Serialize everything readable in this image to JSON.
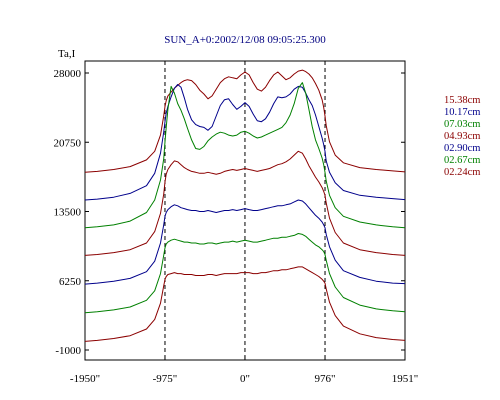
{
  "chart_data": {
    "type": "line",
    "title": "SUN_A+0:2002/12/08 09:05:25.300",
    "ylabel": "Ta,I",
    "xlabel": "",
    "xlim": [
      -1950,
      1951
    ],
    "ylim": [
      -1000,
      30000
    ],
    "x_ticks": [
      {
        "value": -1950,
        "label": "-1950\""
      },
      {
        "value": -975,
        "label": "-975\""
      },
      {
        "value": 0,
        "label": "0\""
      },
      {
        "value": 976,
        "label": "976\""
      },
      {
        "value": 1951,
        "label": "1951\""
      }
    ],
    "y_ticks": [
      {
        "value": -1000,
        "label": "-1000"
      },
      {
        "value": 6250,
        "label": "6250"
      },
      {
        "value": 13500,
        "label": "13500"
      },
      {
        "value": 20750,
        "label": "20750"
      },
      {
        "value": 28000,
        "label": "28000"
      }
    ],
    "vlines": [
      -975,
      0,
      976
    ],
    "legend_position": "right",
    "x": [
      -1950,
      -1800,
      -1600,
      -1400,
      -1200,
      -1100,
      -1030,
      -990,
      -975,
      -960,
      -940,
      -900,
      -860,
      -820,
      -780,
      -740,
      -700,
      -650,
      -600,
      -550,
      -500,
      -450,
      -400,
      -350,
      -300,
      -250,
      -200,
      -150,
      -100,
      -50,
      0,
      50,
      100,
      150,
      200,
      250,
      300,
      350,
      400,
      450,
      500,
      550,
      600,
      650,
      700,
      740,
      780,
      820,
      860,
      900,
      940,
      960,
      976,
      990,
      1030,
      1100,
      1200,
      1400,
      1600,
      1800,
      1951
    ],
    "series": [
      {
        "name": "15.38cm",
        "color": "#8b0000",
        "values": [
          17600,
          17700,
          17900,
          18200,
          18900,
          19800,
          21500,
          23500,
          24500,
          25100,
          25600,
          26000,
          26400,
          26700,
          27000,
          27200,
          27300,
          27200,
          26800,
          26200,
          25800,
          25300,
          25600,
          26300,
          27000,
          27400,
          27600,
          27500,
          27400,
          27800,
          28100,
          27800,
          27000,
          26300,
          26100,
          26500,
          27200,
          27800,
          28100,
          27700,
          27300,
          27500,
          27900,
          28200,
          28300,
          28150,
          27900,
          27500,
          26900,
          26200,
          25200,
          24400,
          23500,
          22500,
          20800,
          19400,
          18600,
          18100,
          17900,
          17750,
          17650
        ]
      },
      {
        "name": "10.17cm",
        "color": "#00008b",
        "values": [
          14700,
          14800,
          15000,
          15400,
          16200,
          17500,
          19600,
          21800,
          22900,
          23800,
          24500,
          25500,
          26400,
          26800,
          26500,
          25400,
          24200,
          23100,
          22600,
          22400,
          22300,
          22000,
          22400,
          23500,
          24600,
          25200,
          25300,
          24700,
          24200,
          24500,
          24900,
          24500,
          23700,
          23000,
          22900,
          23200,
          23900,
          24800,
          25500,
          25400,
          25500,
          25800,
          26300,
          26600,
          26500,
          25900,
          25200,
          24600,
          23600,
          22400,
          21200,
          20500,
          19800,
          18800,
          17600,
          16500,
          15700,
          15200,
          15000,
          14850,
          14750
        ]
      },
      {
        "name": "07.03cm",
        "color": "#008000",
        "values": [
          11800,
          11900,
          12100,
          12500,
          13400,
          14700,
          16800,
          19000,
          20800,
          22300,
          24200,
          26600,
          25900,
          24800,
          24100,
          23200,
          22200,
          21000,
          20100,
          20000,
          20300,
          20900,
          21300,
          21600,
          21800,
          21700,
          21500,
          21400,
          21500,
          21800,
          21900,
          21700,
          21400,
          21200,
          21300,
          21500,
          21700,
          21900,
          22100,
          22300,
          22800,
          23600,
          24800,
          26400,
          27000,
          25900,
          24200,
          22400,
          21000,
          20100,
          19100,
          18400,
          17600,
          16700,
          15200,
          13900,
          13000,
          12400,
          12100,
          11900,
          11800
        ]
      },
      {
        "name": "04.93cm",
        "color": "#8b0000",
        "values": [
          8900,
          9000,
          9200,
          9500,
          10200,
          11400,
          13300,
          15300,
          16600,
          17400,
          17900,
          18400,
          18800,
          18700,
          18400,
          18100,
          17900,
          17700,
          17600,
          17500,
          17500,
          17600,
          17500,
          17400,
          17500,
          17700,
          17800,
          17900,
          17800,
          17900,
          18000,
          17900,
          17800,
          17700,
          17800,
          17900,
          18000,
          18200,
          18400,
          18500,
          18700,
          19000,
          19400,
          19800,
          19600,
          19000,
          18300,
          17700,
          17100,
          16600,
          16000,
          15600,
          15200,
          14400,
          12800,
          11300,
          10200,
          9500,
          9200,
          9000,
          8900
        ]
      },
      {
        "name": "02.90cm",
        "color": "#00008b",
        "values": [
          5900,
          6000,
          6200,
          6500,
          7200,
          8300,
          10200,
          12100,
          13000,
          13400,
          13700,
          14000,
          14200,
          14100,
          13900,
          13800,
          13700,
          13600,
          13600,
          13500,
          13500,
          13600,
          13500,
          13400,
          13500,
          13600,
          13600,
          13700,
          13600,
          13700,
          13800,
          13700,
          13600,
          13600,
          13700,
          13800,
          13900,
          14000,
          14100,
          14100,
          14200,
          14300,
          14500,
          14700,
          14600,
          14300,
          13900,
          13500,
          13100,
          12800,
          12400,
          12100,
          11800,
          11100,
          9800,
          8400,
          7300,
          6600,
          6200,
          6000,
          5950
        ]
      },
      {
        "name": "02.67cm",
        "color": "#008000",
        "values": [
          2900,
          3000,
          3200,
          3500,
          4200,
          5200,
          7000,
          8900,
          9700,
          10100,
          10300,
          10500,
          10600,
          10500,
          10400,
          10300,
          10300,
          10200,
          10200,
          10100,
          10100,
          10200,
          10200,
          10100,
          10200,
          10300,
          10300,
          10400,
          10300,
          10400,
          10500,
          10400,
          10300,
          10300,
          10400,
          10500,
          10600,
          10700,
          10700,
          10800,
          10800,
          10900,
          11000,
          11200,
          11100,
          10900,
          10600,
          10300,
          10000,
          9800,
          9500,
          9300,
          9000,
          8400,
          7000,
          5600,
          4500,
          3700,
          3300,
          3100,
          3000
        ]
      },
      {
        "name": "02.24cm",
        "color": "#8b0000",
        "values": [
          -100,
          0,
          200,
          500,
          1200,
          2200,
          3900,
          5700,
          6400,
          6700,
          6900,
          7000,
          7100,
          7000,
          7000,
          6900,
          6900,
          6900,
          6800,
          6800,
          6800,
          6900,
          6900,
          6800,
          6900,
          7000,
          7000,
          7000,
          7000,
          7100,
          7100,
          7100,
          7000,
          7000,
          7100,
          7100,
          7200,
          7300,
          7300,
          7400,
          7400,
          7500,
          7600,
          7700,
          7700,
          7500,
          7300,
          7100,
          6900,
          6700,
          6400,
          6200,
          6000,
          5400,
          4000,
          2600,
          1500,
          700,
          300,
          100,
          0
        ]
      }
    ]
  }
}
